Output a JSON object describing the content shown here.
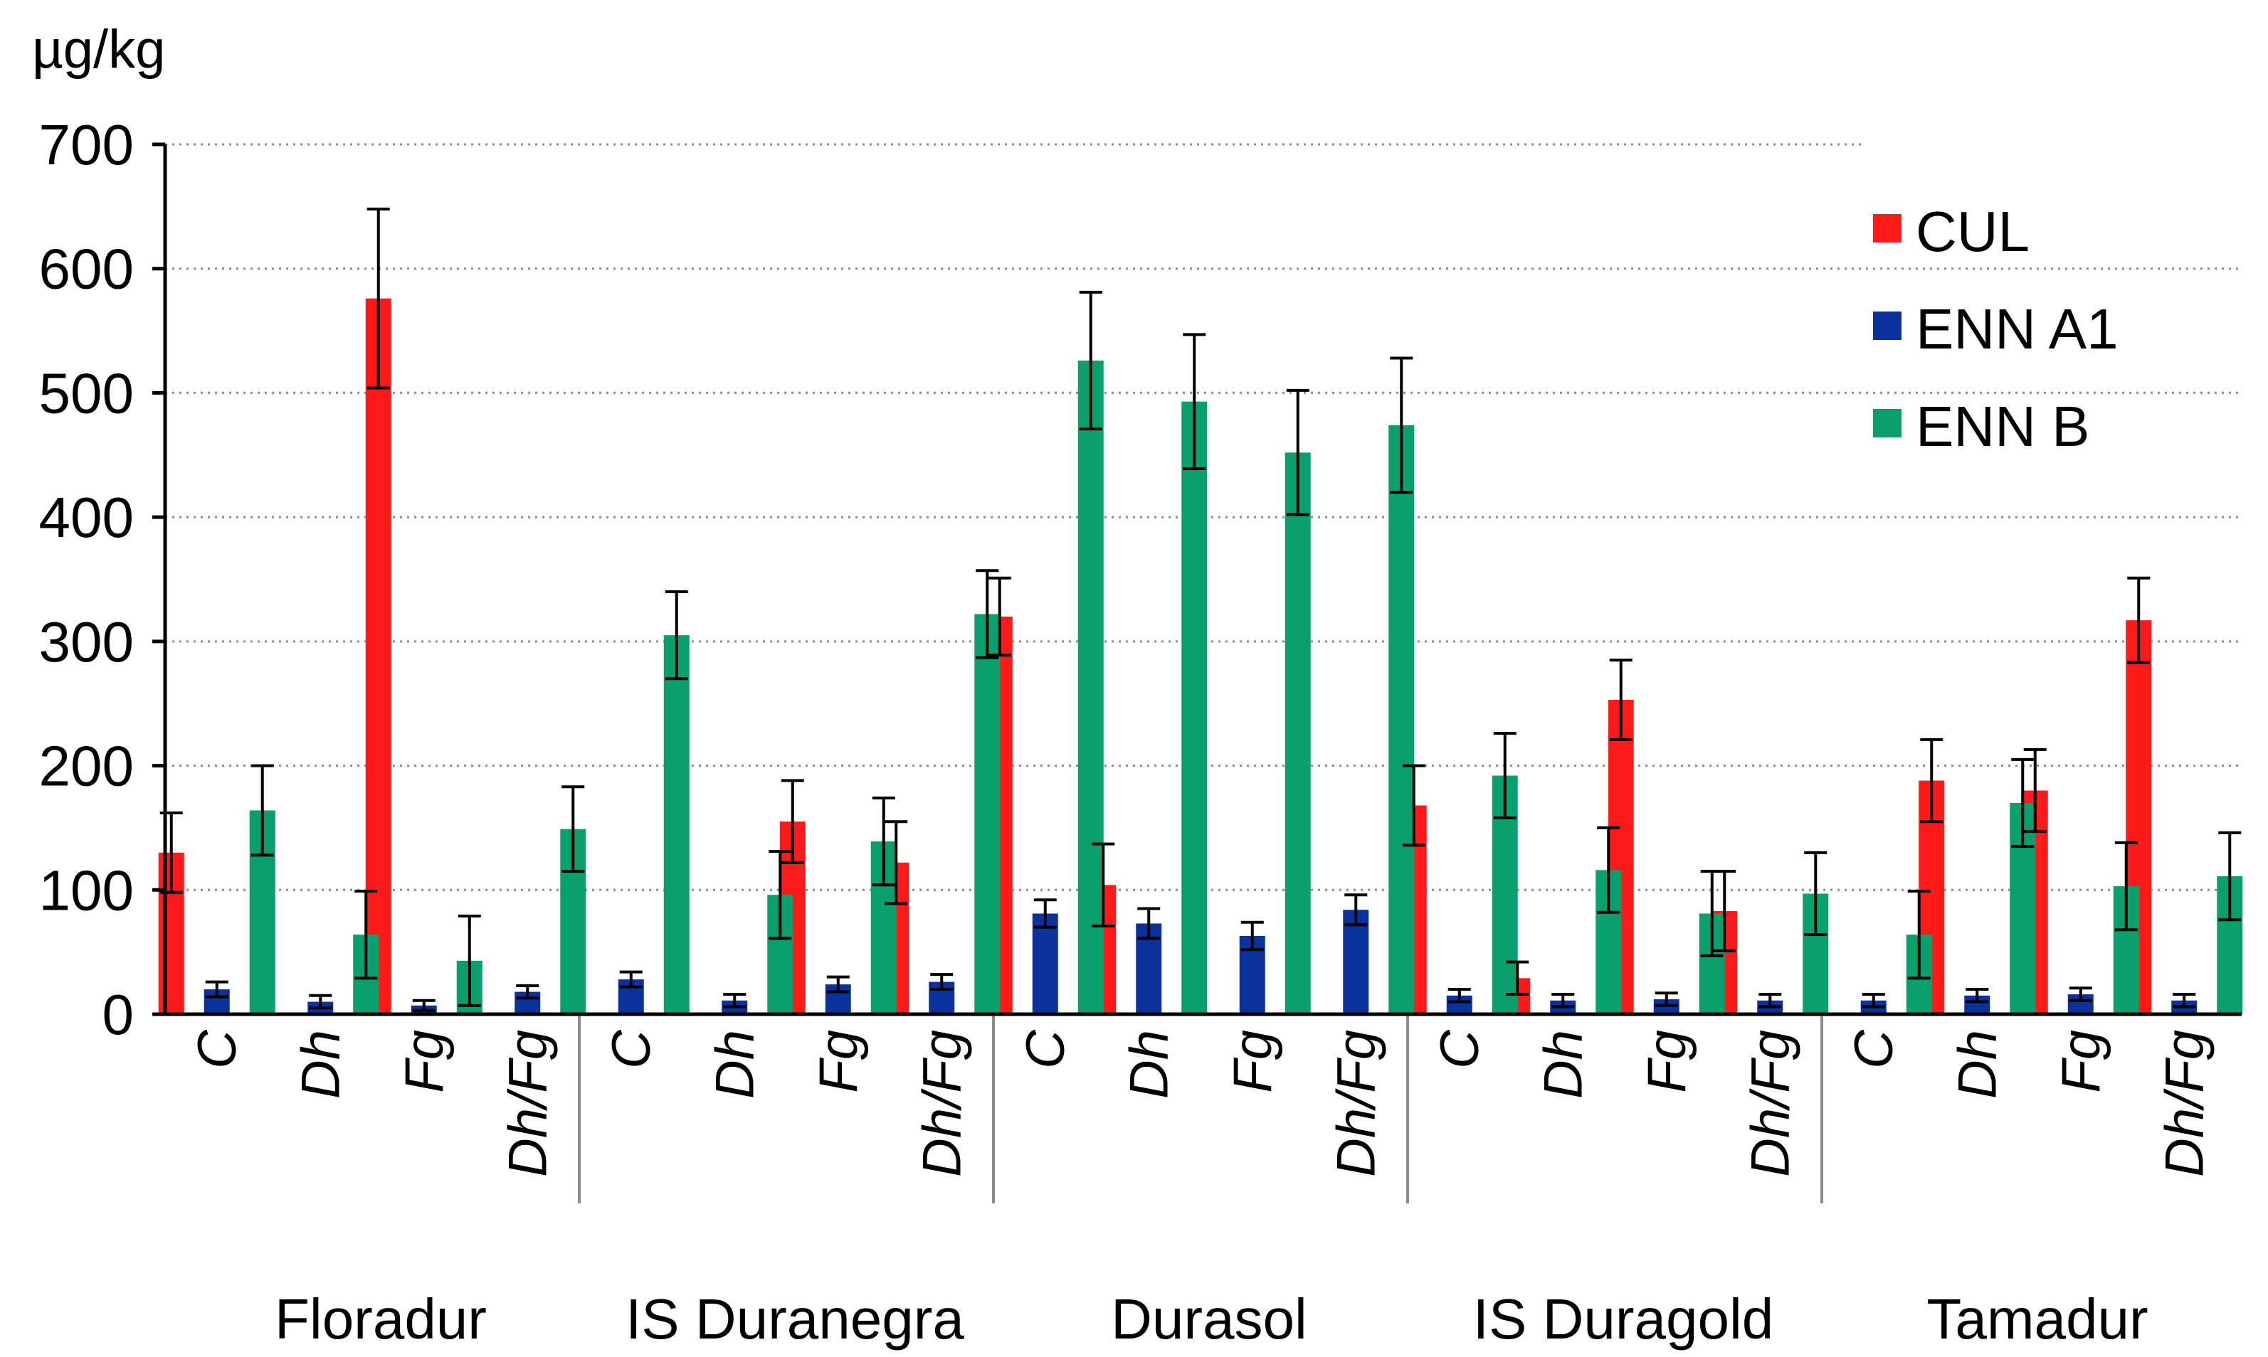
{
  "chart_data": {
    "type": "bar",
    "title": "",
    "ylabel": "µg/kg",
    "xlabel": "",
    "ylim": [
      0,
      700
    ],
    "yticks": [
      0,
      100,
      200,
      300,
      400,
      500,
      600,
      700
    ],
    "grid": true,
    "legend_position": "top-right",
    "colors": {
      "CUL": "#ff1a1a",
      "ENN A1": "#0b319c",
      "ENN B": "#0aa06e"
    },
    "groups": [
      "Floradur",
      "IS Duranegra",
      "Durasol",
      "IS Duragold",
      "Tamadur"
    ],
    "treatments": [
      "C",
      "Dh",
      "Fg",
      "Dh/Fg"
    ],
    "categories": [
      "Floradur C",
      "Floradur Dh",
      "Floradur Fg",
      "Floradur Dh/Fg",
      "IS Duranegra C",
      "IS Duranegra Dh",
      "IS Duranegra Fg",
      "IS Duranegra Dh/Fg",
      "Durasol C",
      "Durasol Dh",
      "Durasol Fg",
      "Durasol Dh/Fg",
      "IS Duragold C",
      "IS Duragold Dh",
      "IS Duragold Fg",
      "IS Duragold Dh/Fg",
      "Tamadur C",
      "Tamadur Dh",
      "Tamadur Fg",
      "Tamadur Dh/Fg"
    ],
    "series": [
      {
        "name": "CUL",
        "values": [
          130,
          0,
          576,
          0,
          0,
          0,
          155,
          122,
          320,
          104,
          0,
          0,
          168,
          29,
          253,
          83,
          0,
          188,
          180,
          317
        ],
        "errors": [
          32,
          0,
          72,
          0,
          0,
          0,
          33,
          33,
          31,
          33,
          0,
          0,
          32,
          13,
          32,
          32,
          0,
          33,
          33,
          34
        ]
      },
      {
        "name": "ENN A1",
        "values": [
          20,
          10,
          7,
          18,
          28,
          11,
          24,
          26,
          81,
          73,
          63,
          84,
          15,
          11,
          12,
          11,
          11,
          15,
          16,
          11
        ],
        "errors": [
          6,
          5,
          4,
          5,
          6,
          5,
          6,
          6,
          11,
          12,
          11,
          12,
          5,
          5,
          5,
          5,
          5,
          5,
          5,
          5
        ]
      },
      {
        "name": "ENN B",
        "values": [
          164,
          64,
          43,
          149,
          305,
          96,
          139,
          322,
          526,
          493,
          452,
          474,
          192,
          116,
          81,
          97,
          64,
          170,
          103,
          111
        ],
        "errors": [
          36,
          35,
          36,
          34,
          35,
          35,
          35,
          35,
          55,
          54,
          50,
          54,
          34,
          34,
          34,
          33,
          35,
          35,
          35,
          35
        ]
      }
    ]
  }
}
